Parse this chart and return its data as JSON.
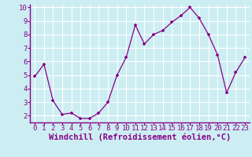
{
  "x": [
    0,
    1,
    2,
    3,
    4,
    5,
    6,
    7,
    8,
    9,
    10,
    11,
    12,
    13,
    14,
    15,
    16,
    17,
    18,
    19,
    20,
    21,
    22,
    23
  ],
  "y": [
    4.9,
    5.8,
    3.1,
    2.1,
    2.2,
    1.8,
    1.8,
    2.2,
    3.0,
    5.0,
    6.3,
    8.7,
    7.3,
    8.0,
    8.3,
    8.9,
    9.4,
    10.0,
    9.2,
    8.0,
    6.5,
    3.7,
    5.2,
    6.3
  ],
  "line_color": "#880088",
  "marker": "+",
  "xlabel": "Windchill (Refroidissement éolien,°C)",
  "ylim": [
    1.5,
    10.2
  ],
  "xlim": [
    -0.5,
    23.5
  ],
  "yticks": [
    2,
    3,
    4,
    5,
    6,
    7,
    8,
    9,
    10
  ],
  "xticks": [
    0,
    1,
    2,
    3,
    4,
    5,
    6,
    7,
    8,
    9,
    10,
    11,
    12,
    13,
    14,
    15,
    16,
    17,
    18,
    19,
    20,
    21,
    22,
    23
  ],
  "bg_color": "#cceef2",
  "grid_color": "#ffffff",
  "tick_label_fontsize": 6.5,
  "xlabel_fontsize": 7.5,
  "markersize": 3.5,
  "linewidth": 0.9
}
